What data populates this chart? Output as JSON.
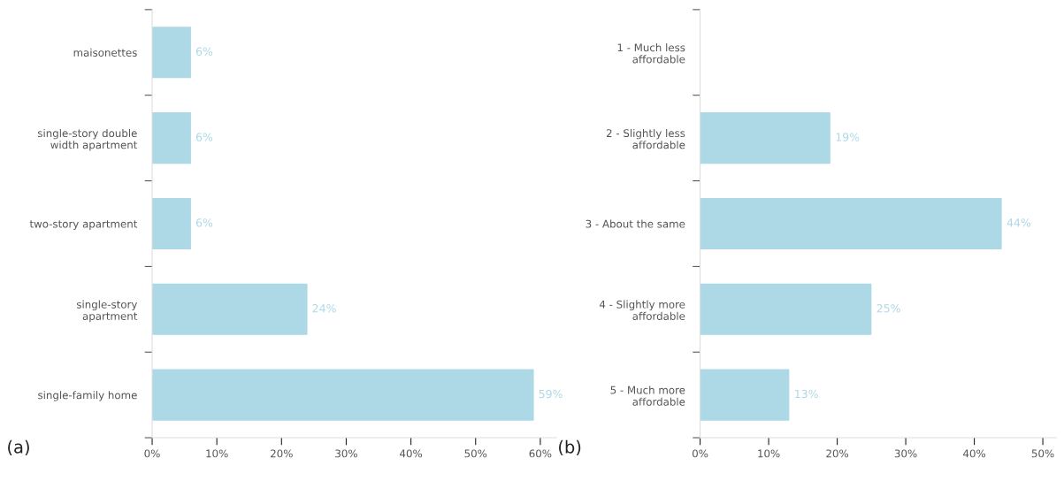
{
  "chart_data": [
    {
      "type": "bar",
      "orientation": "horizontal",
      "categories": [
        "maisonettes",
        "single-story double\nwidth apartment",
        "two-story apartment",
        "single-story\napartment",
        "single-family home"
      ],
      "values": [
        6,
        6,
        6,
        24,
        59
      ],
      "value_labels": [
        "6%",
        "6%",
        "6%",
        "24%",
        "59%"
      ],
      "color": "#add8e6",
      "xlim": [
        0,
        62.5
      ],
      "xticks": [
        {
          "value": 0,
          "label": "0%"
        },
        {
          "value": 10,
          "label": "10%"
        },
        {
          "value": 20,
          "label": "20%"
        },
        {
          "value": 30,
          "label": "30%"
        },
        {
          "value": 40,
          "label": "40%"
        },
        {
          "value": 50,
          "label": "50%"
        },
        {
          "value": 60,
          "label": "60%"
        }
      ],
      "grid": false,
      "legend": false,
      "annotations": [
        "(a)"
      ]
    },
    {
      "type": "bar",
      "orientation": "horizontal",
      "categories": [
        "1 - Much less\naffordable",
        "2 - Slightly less\naffordable",
        "3 - About the same",
        "4 - Slightly more\naffordable",
        "5 - Much more\naffordable"
      ],
      "values": [
        null,
        19,
        44,
        25,
        13
      ],
      "value_labels": [
        null,
        "19%",
        "44%",
        "25%",
        "13%"
      ],
      "color": "#add8e6",
      "xlim": [
        0,
        52
      ],
      "xticks": [
        {
          "value": 0,
          "label": "0%"
        },
        {
          "value": 10,
          "label": "10%"
        },
        {
          "value": 20,
          "label": "20%"
        },
        {
          "value": 30,
          "label": "30%"
        },
        {
          "value": 40,
          "label": "40%"
        },
        {
          "value": 50,
          "label": "50%"
        }
      ],
      "grid": false,
      "legend": false,
      "annotations": [
        "(b)"
      ]
    }
  ]
}
